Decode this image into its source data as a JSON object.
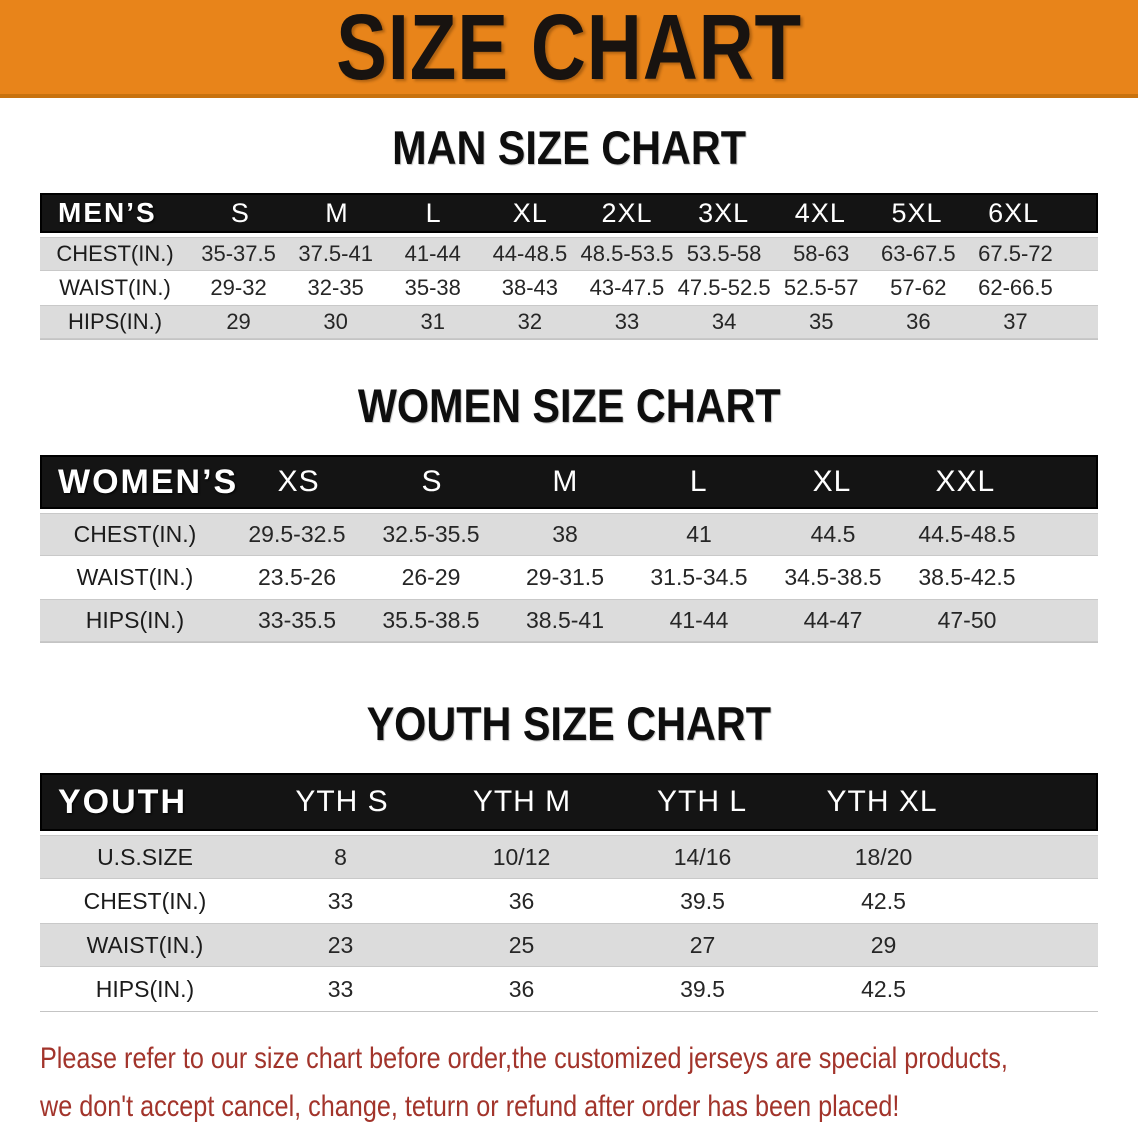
{
  "banner": {
    "title": "SIZE CHART"
  },
  "sections": [
    {
      "id": "men",
      "heading": "MAN SIZE CHART",
      "table": {
        "header_label": "MEN’S",
        "columns": [
          "S",
          "M",
          "L",
          "XL",
          "2XL",
          "3XL",
          "4XL",
          "5XL",
          "6XL"
        ],
        "rows": [
          {
            "label": "CHEST(IN.)",
            "values": [
              "35-37.5",
              "37.5-41",
              "41-44",
              "44-48.5",
              "48.5-53.5",
              "53.5-58",
              "58-63",
              "63-67.5",
              "67.5-72"
            ]
          },
          {
            "label": "WAIST(IN.)",
            "values": [
              "29-32",
              "32-35",
              "35-38",
              "38-43",
              "43-47.5",
              "47.5-52.5",
              "52.5-57",
              "57-62",
              "62-66.5"
            ]
          },
          {
            "label": "HIPS(IN.)",
            "values": [
              "29",
              "30",
              "31",
              "32",
              "33",
              "34",
              "35",
              "36",
              "37"
            ]
          }
        ]
      }
    },
    {
      "id": "women",
      "heading": "WOMEN SIZE CHART",
      "table": {
        "header_label": "WOMEN’S",
        "columns": [
          "XS",
          "S",
          "M",
          "L",
          "XL",
          "XXL"
        ],
        "rows": [
          {
            "label": "CHEST(IN.)",
            "values": [
              "29.5-32.5",
              "32.5-35.5",
              "38",
              "41",
              "44.5",
              "44.5-48.5"
            ]
          },
          {
            "label": "WAIST(IN.)",
            "values": [
              "23.5-26",
              "26-29",
              "29-31.5",
              "31.5-34.5",
              "34.5-38.5",
              "38.5-42.5"
            ]
          },
          {
            "label": "HIPS(IN.)",
            "values": [
              "33-35.5",
              "35.5-38.5",
              "38.5-41",
              "41-44",
              "44-47",
              "47-50"
            ]
          }
        ]
      }
    },
    {
      "id": "youth",
      "heading": "YOUTH SIZE CHART",
      "table": {
        "header_label": "YOUTH",
        "columns": [
          "YTH S",
          "YTH M",
          "YTH L",
          "YTH XL"
        ],
        "rows": [
          {
            "label": "U.S.SIZE",
            "values": [
              "8",
              "10/12",
              "14/16",
              "18/20"
            ]
          },
          {
            "label": "CHEST(IN.)",
            "values": [
              "33",
              "36",
              "39.5",
              "42.5"
            ]
          },
          {
            "label": "WAIST(IN.)",
            "values": [
              "23",
              "25",
              "27",
              "29"
            ]
          },
          {
            "label": "HIPS(IN.)",
            "values": [
              "33",
              "36",
              "39.5",
              "42.5"
            ]
          }
        ]
      }
    }
  ],
  "disclaimer": {
    "line1": "Please refer to our size chart before order,the customized jerseys are special products,",
    "line2": "we don't accept cancel, change, teturn or refund after order has been placed!"
  },
  "colors": {
    "banner_bg": "#E8841A",
    "banner_border": "#C8720E",
    "banner_text": "#181310",
    "header_bar_bg": "#141414",
    "header_bar_text": "#FFFFFF",
    "stripe_row_bg": "#DCDCDC",
    "plain_row_bg": "#FFFFFF",
    "heading_text": "#0E0E0E",
    "disclaimer_text": "#A2342B"
  }
}
